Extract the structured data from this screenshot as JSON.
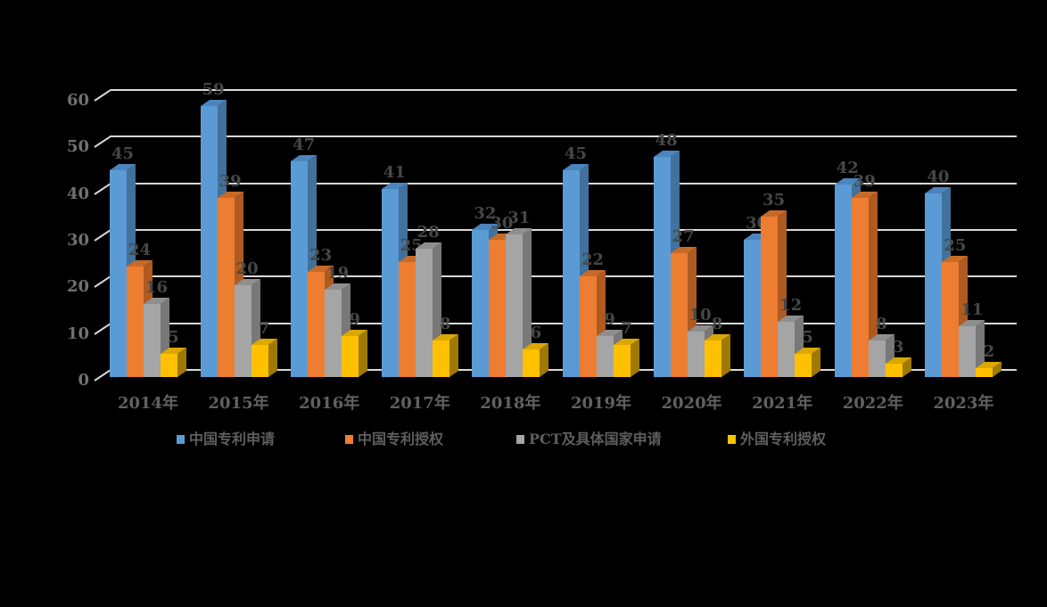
{
  "chart_data": {
    "type": "bar",
    "style": "3d-clustered-column",
    "title": "",
    "xlabel": "",
    "ylabel": "",
    "background_color": "#000000",
    "gridline_color": "#D9D9D9",
    "data_label_color": "#474747",
    "axis_tick_color": "#717171",
    "category_label_color": "#616161",
    "legend_text_color": "#5E5E5E",
    "grid": true,
    "legend_position": "bottom",
    "ylim": [
      0,
      60
    ],
    "yticks": [
      0,
      10,
      20,
      30,
      40,
      50,
      60
    ],
    "categories": [
      "2014年",
      "2015年",
      "2016年",
      "2017年",
      "2018年",
      "2019年",
      "2020年",
      "2021年",
      "2022年",
      "2023年"
    ],
    "series": [
      {
        "name": "中国专利申请",
        "color": "#5B9BD5",
        "side_color": "#41719C",
        "top_color": "#4C84BE",
        "values": [
          45,
          59,
          47,
          41,
          32,
          45,
          48,
          30,
          42,
          40
        ]
      },
      {
        "name": "中国专利授权",
        "color": "#ED7D31",
        "side_color": "#AE5A21",
        "top_color": "#C76A28",
        "values": [
          24,
          39,
          23,
          25,
          30,
          22,
          27,
          35,
          39,
          25
        ]
      },
      {
        "name": "PCT及具体国家申请",
        "color": "#A5A5A5",
        "side_color": "#787878",
        "top_color": "#8F8F8F",
        "values": [
          16,
          20,
          19,
          28,
          31,
          9,
          10,
          12,
          8,
          11
        ]
      },
      {
        "name": "外国专利授权",
        "color": "#FFC000",
        "side_color": "#9E7A00",
        "top_color": "#DBA800",
        "values": [
          5,
          7,
          9,
          8,
          6,
          7,
          8,
          5,
          3,
          2
        ]
      }
    ]
  }
}
